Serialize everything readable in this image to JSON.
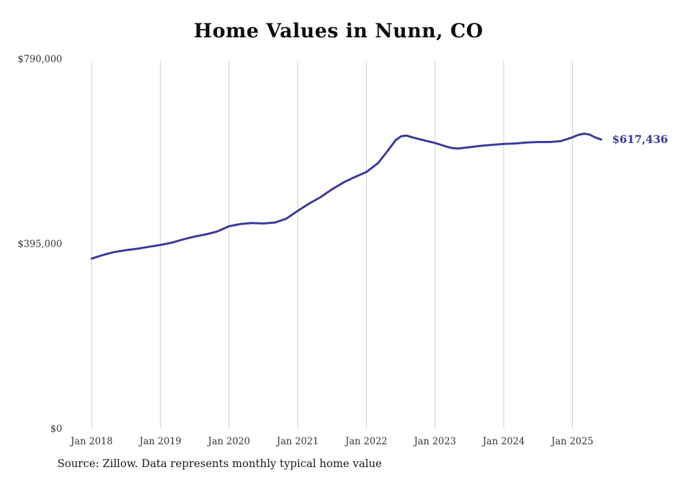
{
  "title": "Home Values in Nunn, CO",
  "source_note": "Source: Zillow. Data represents monthly typical home value",
  "colors": {
    "line": "#3535ad",
    "grid": "#cccccc",
    "tick_label": "#333333",
    "end_label": "#3535ad",
    "title": "#0d0d0d"
  },
  "chart_data": {
    "type": "line",
    "title": "Home Values in Nunn, CO",
    "xlabel": "",
    "ylabel": "",
    "xlim": [
      2017.67,
      2025.92
    ],
    "ylim": [
      0,
      790000
    ],
    "grid": "vertical-only",
    "end_label": "$617,436",
    "latest_value": 617436,
    "x_ticks": [
      {
        "label": "Jan 2018",
        "x": 2018
      },
      {
        "label": "Jan 2019",
        "x": 2019
      },
      {
        "label": "Jan 2020",
        "x": 2020
      },
      {
        "label": "Jan 2021",
        "x": 2021
      },
      {
        "label": "Jan 2022",
        "x": 2022
      },
      {
        "label": "Jan 2023",
        "x": 2023
      },
      {
        "label": "Jan 2024",
        "x": 2024
      },
      {
        "label": "Jan 2025",
        "x": 2025
      }
    ],
    "y_ticks": [
      {
        "label": "$0",
        "value": 0
      },
      {
        "label": "$395,000",
        "value": 395000
      },
      {
        "label": "$790,000",
        "value": 790000
      }
    ],
    "series": [
      {
        "name": "Monthly typical home value",
        "color": "#3535ad",
        "points": [
          [
            2018.0,
            363000
          ],
          [
            2018.17,
            371000
          ],
          [
            2018.33,
            377000
          ],
          [
            2018.5,
            381000
          ],
          [
            2018.67,
            384000
          ],
          [
            2018.83,
            388000
          ],
          [
            2019.0,
            392000
          ],
          [
            2019.17,
            397000
          ],
          [
            2019.33,
            404000
          ],
          [
            2019.5,
            410000
          ],
          [
            2019.67,
            415000
          ],
          [
            2019.83,
            421000
          ],
          [
            2020.0,
            432000
          ],
          [
            2020.17,
            437000
          ],
          [
            2020.33,
            439000
          ],
          [
            2020.5,
            438000
          ],
          [
            2020.67,
            440000
          ],
          [
            2020.83,
            448000
          ],
          [
            2021.0,
            465000
          ],
          [
            2021.17,
            481000
          ],
          [
            2021.33,
            494000
          ],
          [
            2021.5,
            511000
          ],
          [
            2021.67,
            526000
          ],
          [
            2021.83,
            537000
          ],
          [
            2022.0,
            548000
          ],
          [
            2022.17,
            567000
          ],
          [
            2022.33,
            597000
          ],
          [
            2022.42,
            615000
          ],
          [
            2022.5,
            624000
          ],
          [
            2022.58,
            626000
          ],
          [
            2022.67,
            622000
          ],
          [
            2022.83,
            616000
          ],
          [
            2023.0,
            610000
          ],
          [
            2023.17,
            602000
          ],
          [
            2023.25,
            599000
          ],
          [
            2023.33,
            598000
          ],
          [
            2023.5,
            601000
          ],
          [
            2023.67,
            604000
          ],
          [
            2023.83,
            606000
          ],
          [
            2024.0,
            608000
          ],
          [
            2024.17,
            609000
          ],
          [
            2024.33,
            611000
          ],
          [
            2024.5,
            612000
          ],
          [
            2024.67,
            612000
          ],
          [
            2024.83,
            614000
          ],
          [
            2025.0,
            622000
          ],
          [
            2025.08,
            627000
          ],
          [
            2025.17,
            630000
          ],
          [
            2025.25,
            628000
          ],
          [
            2025.33,
            622000
          ],
          [
            2025.42,
            617436
          ]
        ]
      }
    ]
  }
}
